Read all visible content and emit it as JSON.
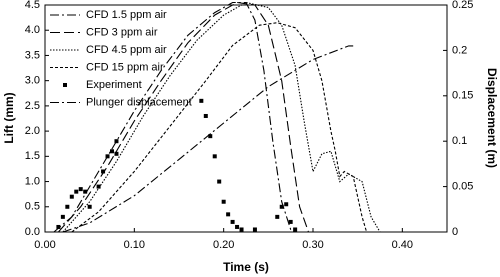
{
  "chart_data": {
    "type": "line",
    "xlabel": "Time (s)",
    "ylabel": "Lift (mm)",
    "y2label": "Displacement (m)",
    "xlim": [
      0,
      0.45
    ],
    "xticks": [
      {
        "value": 0,
        "label": "0.00"
      },
      {
        "value": 0.1,
        "label": "0.10"
      },
      {
        "value": 0.2,
        "label": "0.20"
      },
      {
        "value": 0.3,
        "label": "0.30"
      },
      {
        "value": 0.4,
        "label": "0.40"
      }
    ],
    "ylim": [
      0,
      4.5
    ],
    "yticks": [
      {
        "value": 0,
        "label": "0.0"
      },
      0.5,
      {
        "value": 1,
        "label": "1.0"
      },
      1.5,
      {
        "value": 2,
        "label": "2.0"
      },
      2.5,
      {
        "value": 3,
        "label": "3.0"
      },
      3.5,
      {
        "value": 4,
        "label": "4.0"
      },
      4.5
    ],
    "y2lim": [
      0,
      0.25
    ],
    "y2ticks": [
      0,
      0.05,
      0.1,
      0.15,
      0.2,
      0.25
    ],
    "legend": "upper-left",
    "series": [
      {
        "name": "CFD 1.5 ppm air",
        "color": "#000000",
        "line_style": "dash-dot",
        "x": [
          0.01,
          0.03,
          0.05,
          0.08,
          0.1,
          0.13,
          0.16,
          0.19,
          0.21,
          0.225,
          0.235,
          0.245,
          0.255,
          0.265,
          0.275,
          0.28
        ],
        "values": [
          0,
          0.3,
          0.9,
          1.8,
          2.4,
          3.2,
          3.9,
          4.35,
          4.55,
          4.55,
          4.2,
          3.2,
          1.8,
          0.6,
          0.05,
          0
        ]
      },
      {
        "name": "CFD 3 ppm air",
        "color": "#000000",
        "line_style": "long-dash",
        "x": [
          0.015,
          0.04,
          0.07,
          0.1,
          0.13,
          0.16,
          0.19,
          0.215,
          0.235,
          0.25,
          0.265,
          0.275,
          0.285,
          0.295
        ],
        "values": [
          0,
          0.5,
          1.3,
          2.2,
          3.0,
          3.75,
          4.3,
          4.55,
          4.5,
          4.1,
          3.0,
          1.7,
          0.5,
          0
        ]
      },
      {
        "name": "CFD 4.5 ppm air",
        "color": "#000000",
        "line_style": "dotted",
        "x": [
          0.02,
          0.05,
          0.08,
          0.11,
          0.14,
          0.17,
          0.2,
          0.225,
          0.25,
          0.265,
          0.28,
          0.29,
          0.3,
          0.31,
          0.32,
          0.33,
          0.34,
          0.355,
          0.365,
          0.375
        ],
        "values": [
          0,
          0.6,
          1.4,
          2.3,
          3.1,
          3.8,
          4.3,
          4.55,
          4.45,
          4.1,
          3.3,
          2.2,
          1.2,
          1.55,
          1.6,
          1.0,
          1.15,
          1.0,
          0.3,
          0
        ]
      },
      {
        "name": "CFD 15 ppm air",
        "color": "#000000",
        "line_style": "short-dash",
        "x": [
          0.03,
          0.06,
          0.1,
          0.14,
          0.18,
          0.21,
          0.24,
          0.26,
          0.28,
          0.3,
          0.31,
          0.32,
          0.325,
          0.33,
          0.335,
          0.345,
          0.355,
          0.36
        ],
        "values": [
          0,
          0.4,
          1.2,
          2.1,
          3.0,
          3.7,
          4.1,
          4.15,
          4.05,
          3.6,
          3.0,
          2.0,
          1.6,
          1.1,
          1.2,
          1.1,
          0.3,
          0
        ]
      },
      {
        "name": "Experiment",
        "color": "#000000",
        "mode": "markers",
        "x": [
          0.015,
          0.02,
          0.025,
          0.03,
          0.035,
          0.04,
          0.045,
          0.05,
          0.06,
          0.065,
          0.07,
          0.075,
          0.08,
          0.08,
          0.175,
          0.18,
          0.185,
          0.19,
          0.195,
          0.2,
          0.205,
          0.21,
          0.215,
          0.22,
          0.235,
          0.26,
          0.265,
          0.27,
          0.275,
          0.28
        ],
        "values": [
          0.1,
          0.3,
          0.5,
          0.7,
          0.8,
          0.85,
          0.8,
          0.5,
          0.9,
          1.2,
          1.5,
          1.6,
          1.8,
          1.55,
          2.6,
          2.3,
          1.9,
          1.5,
          1.0,
          0.6,
          0.35,
          0.2,
          0.1,
          0.05,
          0.05,
          0.3,
          0.5,
          0.55,
          0.2,
          0.05
        ]
      },
      {
        "name": "Plunger displacement",
        "color": "#000000",
        "line_style": "dash-dot",
        "axis": "y2",
        "x": [
          0.02,
          0.05,
          0.1,
          0.15,
          0.2,
          0.25,
          0.3,
          0.34,
          0.345
        ],
        "values": [
          0,
          0.01,
          0.04,
          0.08,
          0.12,
          0.16,
          0.19,
          0.205,
          0.205
        ]
      }
    ]
  }
}
